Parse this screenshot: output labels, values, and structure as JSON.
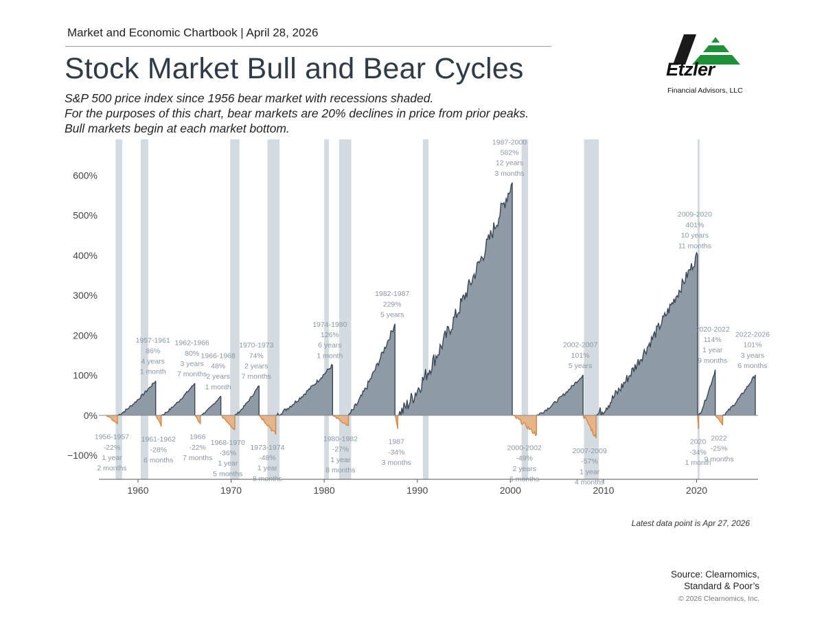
{
  "header": {
    "kicker": "Market and Economic Chartbook | April 28, 2026",
    "title": "Stock Market Bull and Bear Cycles",
    "subtitle_lines": [
      "S&P 500 price index since 1956 bear market with recessions shaded.",
      "For the purposes of this chart, bear markets are 20% declines in price from prior peaks.",
      "Bull markets begin at each market bottom."
    ]
  },
  "logo": {
    "name": "Etzler",
    "sub": "Financial Advisors, LLC",
    "colors": {
      "dark": "#1a1a1a",
      "green": "#1f8f3a"
    }
  },
  "footer": {
    "latest": "Latest data point is Apr 27, 2026",
    "source_lines": [
      "Source: Clearnomics,",
      "Standard & Poor’s"
    ],
    "copyright": "© 2026 Clearnomics, Inc."
  },
  "colors": {
    "bull_fill": "#8e9aa6",
    "bull_line": "#3a4652",
    "bear_fill": "#e6b48a",
    "bear_line": "#d08a4a",
    "recession": "#d3dbe1",
    "axis_text": "#444",
    "label_text": "#8a96a2"
  },
  "chart_data": {
    "type": "area",
    "y_ticks": [
      {
        "value": 600,
        "label": "600%"
      },
      {
        "value": 500,
        "label": "500%"
      },
      {
        "value": 400,
        "label": "400%"
      },
      {
        "value": 300,
        "label": "300%"
      },
      {
        "value": 200,
        "label": "200%"
      },
      {
        "value": 100,
        "label": "100%"
      },
      {
        "value": 0,
        "label": "0%"
      },
      {
        "value": -100,
        "label": "−100%"
      }
    ],
    "x_ticks": [
      1960,
      1970,
      1980,
      1990,
      2000,
      2010,
      2020
    ],
    "xlim": [
      1955.8,
      2026.6
    ],
    "ylim": [
      -160,
      690
    ],
    "recessions": [
      [
        1957.6,
        1958.3
      ],
      [
        1960.3,
        1961.1
      ],
      [
        1969.9,
        1970.9
      ],
      [
        1973.9,
        1975.2
      ],
      [
        1980.0,
        1980.5
      ],
      [
        1981.6,
        1982.9
      ],
      [
        1990.6,
        1991.2
      ],
      [
        2001.2,
        2001.9
      ],
      [
        2007.9,
        2009.5
      ],
      [
        2020.1,
        2020.3
      ]
    ],
    "bear_markets": [
      {
        "start": 1956.6,
        "end": 1957.8,
        "value": -22,
        "label": [
          "1956-1957",
          "-22%",
          "1 year",
          "2 months"
        ]
      },
      {
        "start": 1961.9,
        "end": 1962.5,
        "value": -28,
        "label": [
          "1961-1962",
          "-28%",
          "6 months"
        ]
      },
      {
        "start": 1966.1,
        "end": 1966.7,
        "value": -22,
        "label": [
          "1966",
          "-22%",
          "7 months"
        ]
      },
      {
        "start": 1968.9,
        "end": 1970.4,
        "value": -36,
        "label": [
          "1968-1970",
          "-36%",
          "1 year",
          "5 months"
        ]
      },
      {
        "start": 1973.0,
        "end": 1974.8,
        "value": -48,
        "label": [
          "1973-1974",
          "-48%",
          "1 year",
          "8 months"
        ]
      },
      {
        "start": 1980.9,
        "end": 1982.6,
        "value": -27,
        "label": [
          "1980-1982",
          "-27%",
          "1 year",
          "8 months"
        ]
      },
      {
        "start": 1987.6,
        "end": 1987.9,
        "value": -34,
        "label": [
          "1987",
          "-34%",
          "3 months"
        ]
      },
      {
        "start": 2000.2,
        "end": 2002.8,
        "value": -49,
        "label": [
          "2000-2002",
          "-49%",
          "2 years",
          "6 months"
        ]
      },
      {
        "start": 2007.8,
        "end": 2009.2,
        "value": -57,
        "label": [
          "2007-2009",
          "-57%",
          "1 year",
          "4 months"
        ]
      },
      {
        "start": 2020.1,
        "end": 2020.2,
        "value": -34,
        "label": [
          "2020",
          "-34%",
          "1 month"
        ]
      },
      {
        "start": 2022.0,
        "end": 2022.8,
        "value": -25,
        "label": [
          "2022",
          "-25%",
          "9 months"
        ]
      }
    ],
    "bull_markets": [
      {
        "start": 1957.8,
        "end": 1961.9,
        "value": 86,
        "label": [
          "1957-1961",
          "86%",
          "4 years",
          "1 month"
        ]
      },
      {
        "start": 1962.5,
        "end": 1966.1,
        "value": 80,
        "label": [
          "1962-1966",
          "80%",
          "3 years",
          "7 months"
        ]
      },
      {
        "start": 1966.7,
        "end": 1968.9,
        "value": 48,
        "label": [
          "1966-1968",
          "48%",
          "2 years",
          "1 month"
        ]
      },
      {
        "start": 1970.4,
        "end": 1973.0,
        "value": 74,
        "label": [
          "1970-1973",
          "74%",
          "2 years",
          "7 months"
        ]
      },
      {
        "start": 1974.8,
        "end": 1980.9,
        "value": 126,
        "label": [
          "1974-1980",
          "126%",
          "6 years",
          "1 month"
        ]
      },
      {
        "start": 1982.6,
        "end": 1987.6,
        "value": 229,
        "label": [
          "1982-1987",
          "229%",
          "5 years"
        ]
      },
      {
        "start": 1987.9,
        "end": 2000.2,
        "value": 582,
        "label": [
          "1987-2000",
          "582%",
          "12 years",
          "3 months"
        ]
      },
      {
        "start": 2002.8,
        "end": 2007.8,
        "value": 101,
        "label": [
          "2002-2007",
          "101%",
          "5 years"
        ]
      },
      {
        "start": 2009.2,
        "end": 2020.1,
        "value": 401,
        "label": [
          "2009-2020",
          "401%",
          "10 years",
          "11 months"
        ]
      },
      {
        "start": 2020.2,
        "end": 2022.0,
        "value": 114,
        "label": [
          "2020-2022",
          "114%",
          "1 year",
          "9 months"
        ]
      },
      {
        "start": 2022.8,
        "end": 2026.3,
        "value": 101,
        "label": [
          "2022-2026",
          "101%",
          "3 years",
          "6 months"
        ]
      }
    ]
  }
}
